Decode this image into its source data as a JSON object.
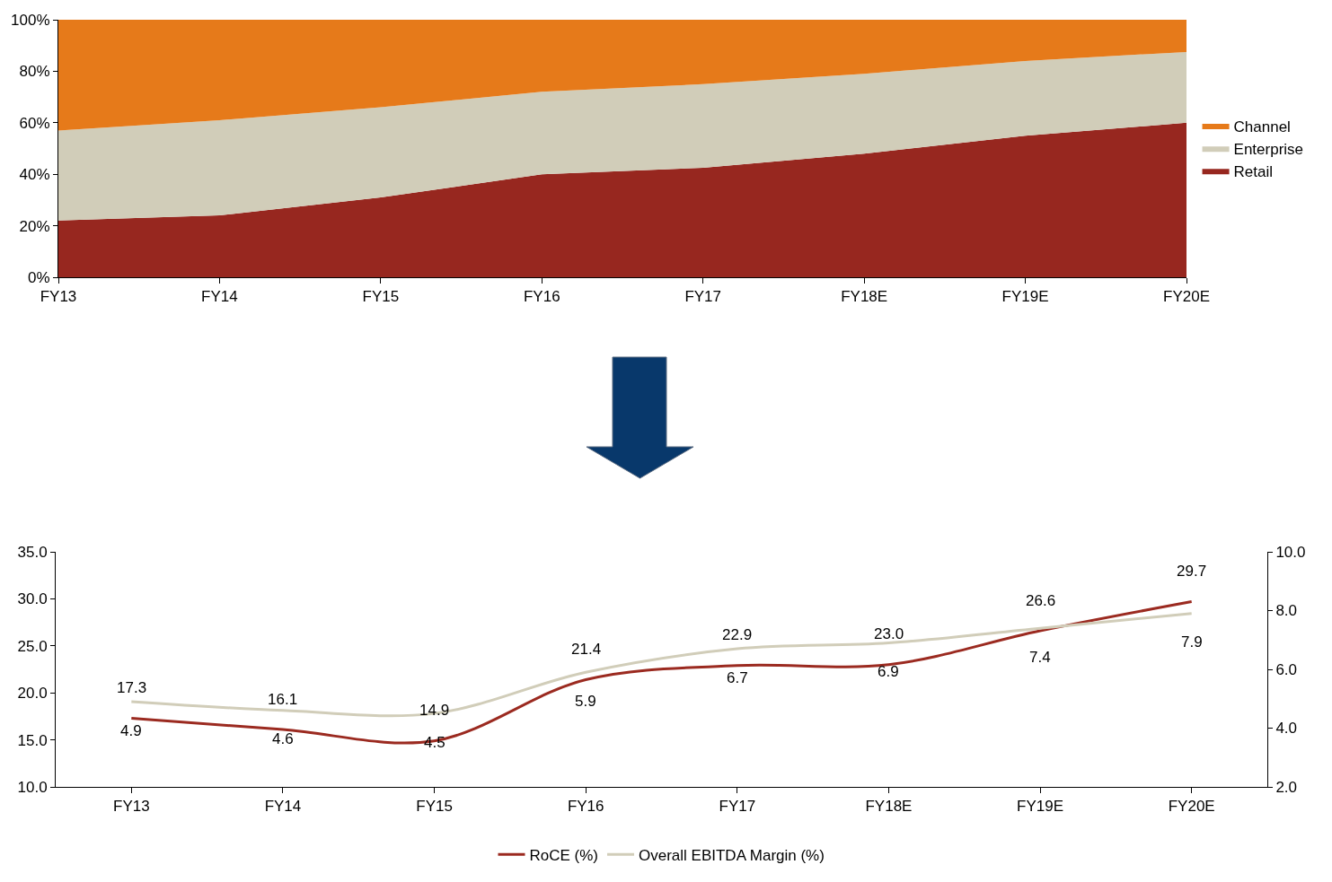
{
  "chart_data": [
    {
      "type": "area",
      "stacked": true,
      "categories": [
        "FY13",
        "FY14",
        "FY15",
        "FY16",
        "FY17",
        "FY18E",
        "FY19E",
        "FY20E"
      ],
      "series": [
        {
          "name": "Retail",
          "color": "#97271f",
          "values": [
            22,
            24,
            31,
            40,
            42.5,
            48,
            55,
            60
          ]
        },
        {
          "name": "Enterprise",
          "color": "#d1cdb9",
          "values": [
            35,
            37,
            35,
            32,
            32.5,
            31,
            29,
            27.5
          ]
        },
        {
          "name": "Channel",
          "color": "#e67a1a",
          "values": [
            43,
            39,
            34,
            28,
            25,
            21,
            16,
            12.5
          ]
        }
      ],
      "ylim": [
        0,
        100
      ],
      "yticks": [
        {
          "value": 0,
          "label": "0%"
        },
        {
          "value": 20,
          "label": "20%"
        },
        {
          "value": 40,
          "label": "40%"
        },
        {
          "value": 60,
          "label": "60%"
        },
        {
          "value": 80,
          "label": "80%"
        },
        {
          "value": 100,
          "label": "100%"
        }
      ],
      "grid": false,
      "legend": "right",
      "marker": "none"
    },
    {
      "type": "line",
      "categories": [
        "FY13",
        "FY14",
        "FY15",
        "FY16",
        "FY17",
        "FY18E",
        "FY19E",
        "FY20E"
      ],
      "series": [
        {
          "name": "RoCE (%)",
          "color": "#9b2a20",
          "values": [
            17.3,
            16.1,
            14.9,
            21.4,
            22.9,
            23.0,
            26.6,
            29.7
          ],
          "value_labels": [
            "17.3",
            "16.1",
            "14.9",
            "21.4",
            "22.9",
            "23.0",
            "26.6",
            "29.7"
          ]
        },
        {
          "name": "Overall EBITDA Margin (%)",
          "color": "#d1cdb9",
          "axis": "y2",
          "values": [
            4.9,
            4.6,
            4.5,
            5.9,
            6.7,
            6.9,
            7.4,
            7.9
          ],
          "value_labels": [
            "4.9",
            "4.6",
            "4.5",
            "5.9",
            "6.7",
            "6.9",
            "7.4",
            "7.9"
          ]
        }
      ],
      "ylim": [
        10,
        35
      ],
      "yticks": [
        {
          "value": 10,
          "label": "10.0"
        },
        {
          "value": 15,
          "label": "15.0"
        },
        {
          "value": 20,
          "label": "20.0"
        },
        {
          "value": 25,
          "label": "25.0"
        },
        {
          "value": 30,
          "label": "30.0"
        },
        {
          "value": 35,
          "label": "35.0"
        }
      ],
      "y2lim": [
        2,
        10
      ],
      "y2ticks": [
        {
          "value": 2,
          "label": "2.0"
        },
        {
          "value": 4,
          "label": "4.0"
        },
        {
          "value": 6,
          "label": "6.0"
        },
        {
          "value": 8,
          "label": "8.0"
        },
        {
          "value": 10,
          "label": "10.0"
        }
      ],
      "grid": false,
      "legend": "bottom",
      "marker": "none",
      "line_style": "solid"
    }
  ]
}
